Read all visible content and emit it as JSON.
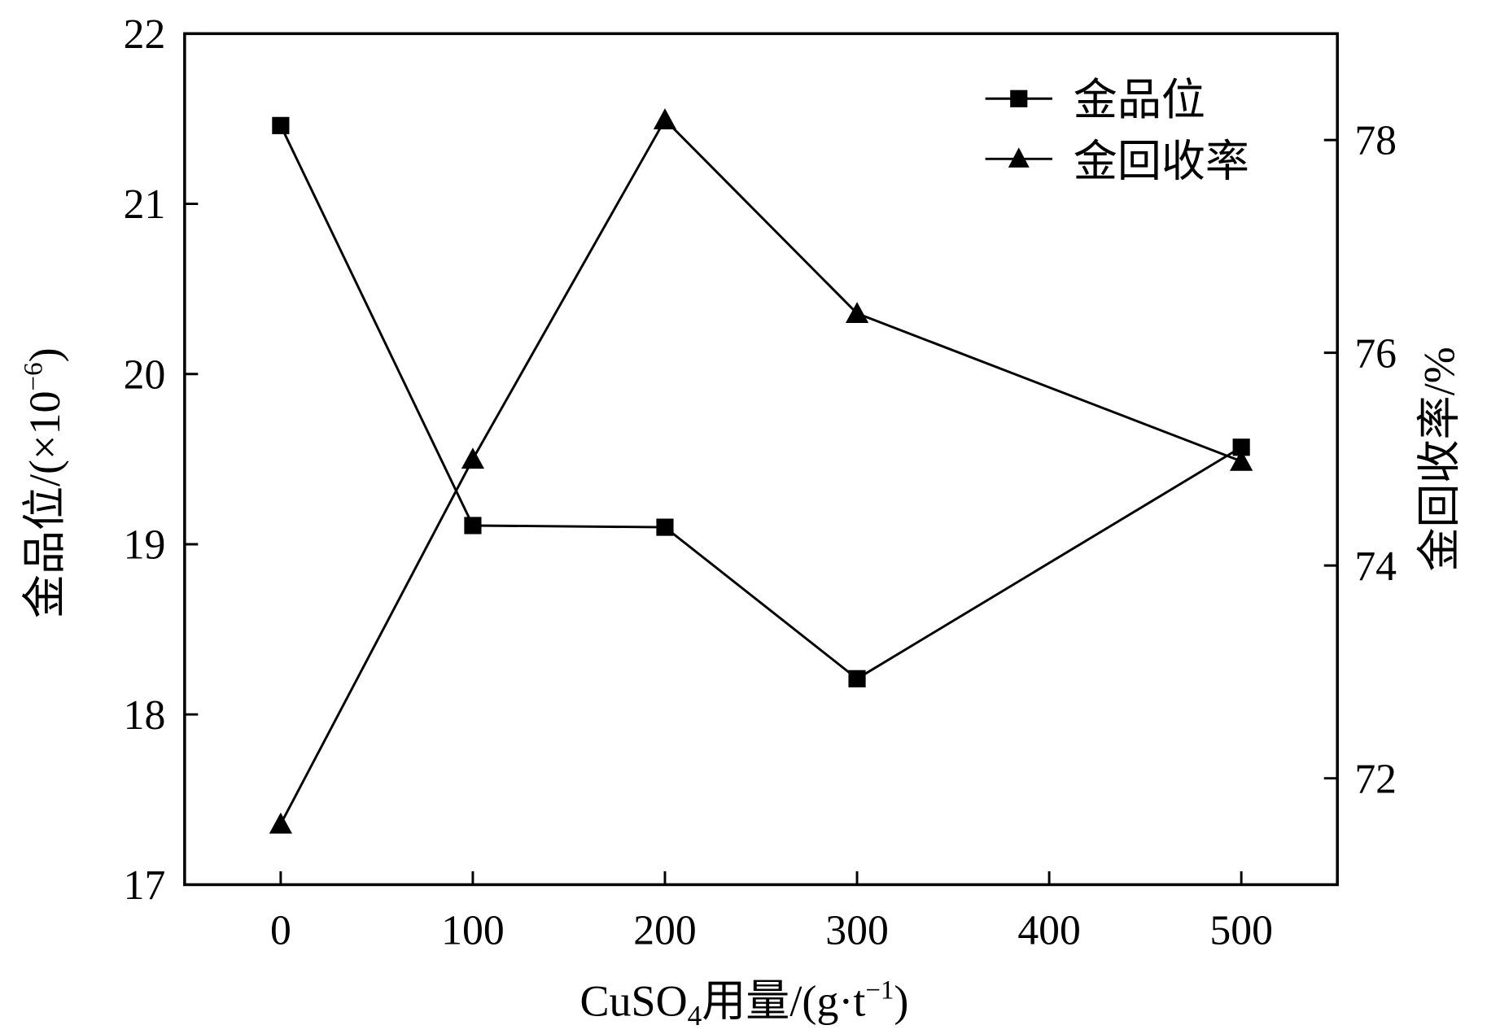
{
  "chart_data": {
    "type": "line",
    "title": "",
    "xlabel": "CuSO₄用量/(g·t⁻¹)",
    "xlabel_parts": {
      "pre": "CuSO",
      "sub": "4",
      "mid": "用量/(g·t",
      "sup": "−1",
      "post": ")"
    },
    "ylabel_left": "金品位/(×10⁻⁶)",
    "ylabel_left_parts": {
      "pre": "金品位/(×10",
      "sup": "−6",
      "post": ")"
    },
    "ylabel_right": "金回收率/%",
    "xlim": [
      -50,
      550
    ],
    "ylim_left": [
      17,
      22
    ],
    "ylim_right": [
      71,
      79
    ],
    "x_ticks": [
      "0",
      "100",
      "200",
      "300",
      "400",
      "500"
    ],
    "y_left_ticks": [
      "17",
      "18",
      "19",
      "20",
      "21",
      "22"
    ],
    "y_right_ticks": [
      "72",
      "74",
      "76",
      "78"
    ],
    "grid": false,
    "legend_position": "top-right",
    "series": [
      {
        "name": "金品位",
        "axis": "left",
        "marker": "square",
        "x": [
          0,
          100,
          200,
          300,
          500
        ],
        "values": [
          21.46,
          19.11,
          19.1,
          18.21,
          19.57
        ]
      },
      {
        "name": "金回收率",
        "axis": "right",
        "marker": "triangle",
        "x": [
          0,
          100,
          200,
          300,
          500
        ],
        "values": [
          71.57,
          75.0,
          78.19,
          76.37,
          74.98
        ]
      }
    ],
    "colors": {
      "line": "#000000",
      "background": "#ffffff"
    }
  }
}
